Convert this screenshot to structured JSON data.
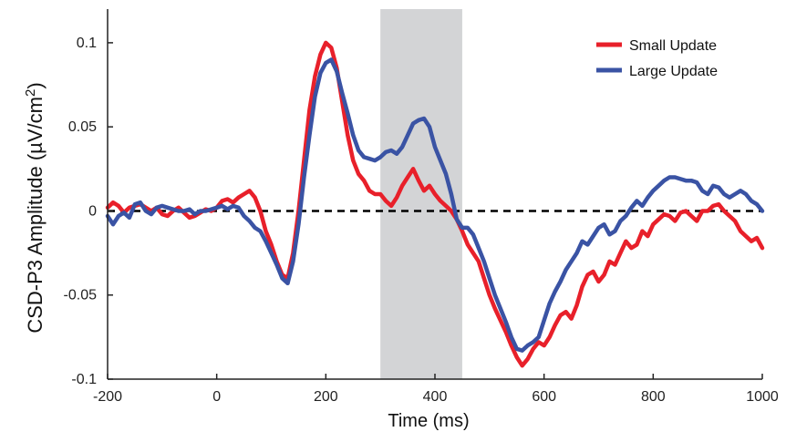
{
  "chart_data": {
    "type": "line",
    "xlabel": "Time (ms)",
    "ylabel": "CSD-P3 Amplitude (µV/cm²)",
    "ylabel_main": "CSD-P3 Amplitude (",
    "ylabel_unit": "µV/cm",
    "ylabel_sup": "2",
    "ylabel_close": ")",
    "xlim": [
      -200,
      1000
    ],
    "ylim": [
      -0.1,
      0.12
    ],
    "x_ticks": [
      -200,
      0,
      200,
      400,
      600,
      800,
      1000
    ],
    "x_tick_labels": [
      "-200",
      "0",
      "200",
      "400",
      "600",
      "800",
      "1000"
    ],
    "y_ticks": [
      -0.1,
      -0.05,
      0,
      0.05,
      0.1
    ],
    "y_tick_labels": [
      "-0.1",
      "-0.05",
      "0",
      "0.05",
      "0.1"
    ],
    "shaded_window": [
      300,
      450
    ],
    "shade_color": "#d3d4d6",
    "zero_line": true,
    "grid": false,
    "legend_position": "top-right",
    "series": [
      {
        "name": "Small Update",
        "color": "#e8202a",
        "x": [
          -200,
          -190,
          -180,
          -170,
          -160,
          -150,
          -140,
          -130,
          -120,
          -110,
          -100,
          -90,
          -80,
          -70,
          -60,
          -50,
          -40,
          -30,
          -20,
          -10,
          0,
          10,
          20,
          30,
          40,
          50,
          60,
          70,
          80,
          90,
          100,
          110,
          120,
          130,
          140,
          150,
          160,
          170,
          180,
          190,
          200,
          210,
          220,
          230,
          240,
          250,
          260,
          270,
          280,
          290,
          300,
          310,
          320,
          330,
          340,
          350,
          360,
          370,
          380,
          390,
          400,
          410,
          420,
          430,
          440,
          450,
          460,
          470,
          480,
          490,
          500,
          510,
          520,
          530,
          540,
          550,
          560,
          570,
          580,
          590,
          600,
          610,
          620,
          630,
          640,
          650,
          660,
          670,
          680,
          690,
          700,
          710,
          720,
          730,
          740,
          750,
          760,
          770,
          780,
          790,
          800,
          810,
          820,
          830,
          840,
          850,
          860,
          870,
          880,
          890,
          900,
          910,
          920,
          930,
          940,
          950,
          960,
          970,
          980,
          990,
          1000
        ],
        "values": [
          0.002,
          0.005,
          0.003,
          -0.001,
          0.002,
          0.003,
          0.004,
          0.002,
          0.0,
          0.002,
          -0.002,
          -0.003,
          0.0,
          0.002,
          -0.001,
          -0.004,
          -0.003,
          -0.001,
          0.001,
          0.0,
          0.002,
          0.006,
          0.007,
          0.005,
          0.008,
          0.01,
          0.012,
          0.008,
          0.0,
          -0.012,
          -0.02,
          -0.03,
          -0.038,
          -0.04,
          -0.025,
          0.0,
          0.03,
          0.06,
          0.08,
          0.093,
          0.1,
          0.097,
          0.085,
          0.065,
          0.045,
          0.03,
          0.022,
          0.018,
          0.012,
          0.01,
          0.01,
          0.006,
          0.003,
          0.008,
          0.015,
          0.02,
          0.025,
          0.018,
          0.012,
          0.015,
          0.01,
          0.006,
          0.003,
          0.0,
          -0.005,
          -0.012,
          -0.02,
          -0.025,
          -0.03,
          -0.04,
          -0.05,
          -0.058,
          -0.065,
          -0.072,
          -0.08,
          -0.087,
          -0.092,
          -0.088,
          -0.082,
          -0.078,
          -0.08,
          -0.075,
          -0.068,
          -0.062,
          -0.06,
          -0.064,
          -0.056,
          -0.045,
          -0.038,
          -0.036,
          -0.042,
          -0.038,
          -0.03,
          -0.032,
          -0.025,
          -0.018,
          -0.022,
          -0.02,
          -0.012,
          -0.015,
          -0.008,
          -0.005,
          -0.002,
          -0.003,
          -0.006,
          -0.001,
          0.0,
          -0.003,
          -0.006,
          0.0,
          0.0,
          0.003,
          0.004,
          0.0,
          -0.003,
          -0.006,
          -0.012,
          -0.015,
          -0.018,
          -0.016,
          -0.022
        ]
      },
      {
        "name": "Large Update",
        "color": "#3a53a4",
        "x": [
          -200,
          -190,
          -180,
          -170,
          -160,
          -150,
          -140,
          -130,
          -120,
          -110,
          -100,
          -90,
          -80,
          -70,
          -60,
          -50,
          -40,
          -30,
          -20,
          -10,
          0,
          10,
          20,
          30,
          40,
          50,
          60,
          70,
          80,
          90,
          100,
          110,
          120,
          130,
          140,
          150,
          160,
          170,
          180,
          190,
          200,
          210,
          220,
          230,
          240,
          250,
          260,
          270,
          280,
          290,
          300,
          310,
          320,
          330,
          340,
          350,
          360,
          370,
          380,
          390,
          400,
          410,
          420,
          430,
          440,
          450,
          460,
          470,
          480,
          490,
          500,
          510,
          520,
          530,
          540,
          550,
          560,
          570,
          580,
          590,
          600,
          610,
          620,
          630,
          640,
          650,
          660,
          670,
          680,
          690,
          700,
          710,
          720,
          730,
          740,
          750,
          760,
          770,
          780,
          790,
          800,
          810,
          820,
          830,
          840,
          850,
          860,
          870,
          880,
          890,
          900,
          910,
          920,
          930,
          940,
          950,
          960,
          970,
          980,
          990,
          1000
        ],
        "values": [
          -0.003,
          -0.008,
          -0.003,
          -0.001,
          -0.004,
          0.004,
          0.005,
          0.0,
          -0.002,
          0.002,
          0.003,
          0.002,
          0.001,
          0.0,
          0.0,
          0.001,
          -0.002,
          0.0,
          0.0,
          0.001,
          0.002,
          0.003,
          0.001,
          0.003,
          0.002,
          -0.003,
          -0.006,
          -0.01,
          -0.012,
          -0.018,
          -0.025,
          -0.032,
          -0.04,
          -0.043,
          -0.03,
          -0.008,
          0.02,
          0.045,
          0.068,
          0.082,
          0.088,
          0.09,
          0.083,
          0.07,
          0.058,
          0.045,
          0.036,
          0.032,
          0.031,
          0.03,
          0.032,
          0.035,
          0.036,
          0.034,
          0.038,
          0.045,
          0.052,
          0.054,
          0.055,
          0.05,
          0.038,
          0.03,
          0.022,
          0.01,
          -0.005,
          -0.01,
          -0.01,
          -0.014,
          -0.022,
          -0.03,
          -0.04,
          -0.05,
          -0.058,
          -0.066,
          -0.075,
          -0.082,
          -0.083,
          -0.08,
          -0.078,
          -0.075,
          -0.065,
          -0.055,
          -0.048,
          -0.042,
          -0.035,
          -0.03,
          -0.025,
          -0.018,
          -0.02,
          -0.015,
          -0.01,
          -0.008,
          -0.014,
          -0.012,
          -0.006,
          -0.003,
          0.002,
          0.006,
          0.003,
          0.008,
          0.012,
          0.015,
          0.018,
          0.02,
          0.02,
          0.019,
          0.018,
          0.018,
          0.017,
          0.012,
          0.01,
          0.015,
          0.014,
          0.01,
          0.008,
          0.01,
          0.012,
          0.01,
          0.006,
          0.004,
          0.0
        ]
      }
    ]
  }
}
